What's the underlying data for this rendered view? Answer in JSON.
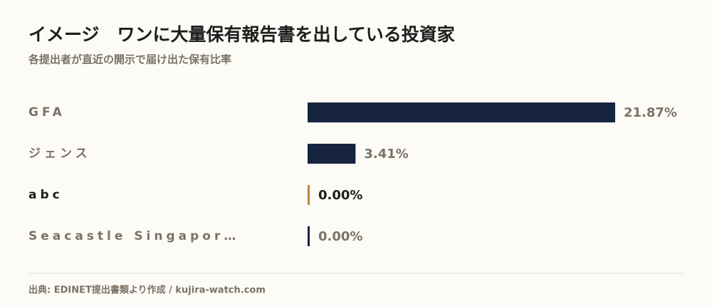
{
  "chart_data": {
    "type": "bar",
    "orientation": "horizontal",
    "title": "イメージ　ワンに大量保有報告書を出している投資家",
    "subtitle": "各提出者が直近の開示で届け出た保有比率",
    "categories": [
      "GFA",
      "ジェンス",
      "abc",
      "Seacastle Singapor…"
    ],
    "values": [
      21.87,
      3.41,
      0.0,
      0.0
    ],
    "value_labels": [
      "21.87%",
      "3.41%",
      "0.00%",
      "0.00%"
    ],
    "colors": [
      "#172440",
      "#172440",
      "#b8863b",
      "#172440"
    ],
    "highlight": "abc",
    "xlim": [
      0,
      21.87
    ],
    "source": "出典: EDINET提出書類より作成 / kujira-watch.com"
  }
}
